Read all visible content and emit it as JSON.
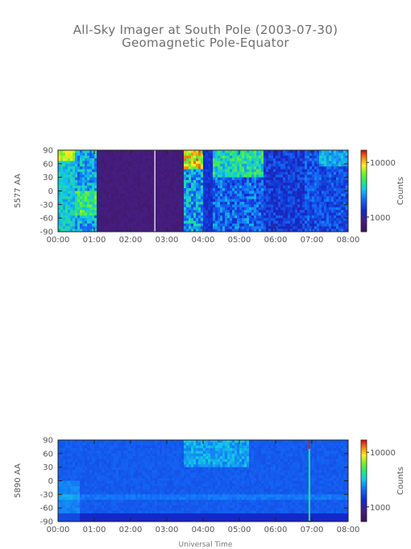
{
  "title": "All-Sky Imager at South Pole (2003-07-30)",
  "subtitle": "Geomagnetic Pole-Equator",
  "chart_data": [
    {
      "type": "heatmap",
      "ylabel": "5577 AA",
      "colorbar_label": "Counts",
      "colorbar_ticks": [
        "10000",
        "1000"
      ],
      "x_ticks": [
        "00:00",
        "01:00",
        "02:00",
        "03:00",
        "04:00",
        "05:00",
        "06:00",
        "07:00",
        "08:00"
      ],
      "y_ticks": [
        "90",
        "60",
        "30",
        "0",
        "-30",
        "-60",
        "-90"
      ],
      "xlim": [
        0,
        8
      ],
      "ylim": [
        -90,
        90
      ],
      "colorscale": "log",
      "clim": [
        500,
        20000
      ]
    },
    {
      "type": "heatmap",
      "ylabel": "5890 AA",
      "colorbar_label": "Counts",
      "colorbar_ticks": [
        "10000",
        "1000"
      ],
      "x_ticks": [
        "00:00",
        "01:00",
        "02:00",
        "03:00",
        "04:00",
        "05:00",
        "06:00",
        "07:00",
        "08:00"
      ],
      "y_ticks": [
        "90",
        "60",
        "30",
        "0",
        "-30",
        "-60",
        "-90"
      ],
      "xlim": [
        0,
        8
      ],
      "ylim": [
        -90,
        90
      ],
      "colorscale": "log",
      "clim": [
        500,
        20000
      ]
    }
  ],
  "xlabel": "Universal Time"
}
